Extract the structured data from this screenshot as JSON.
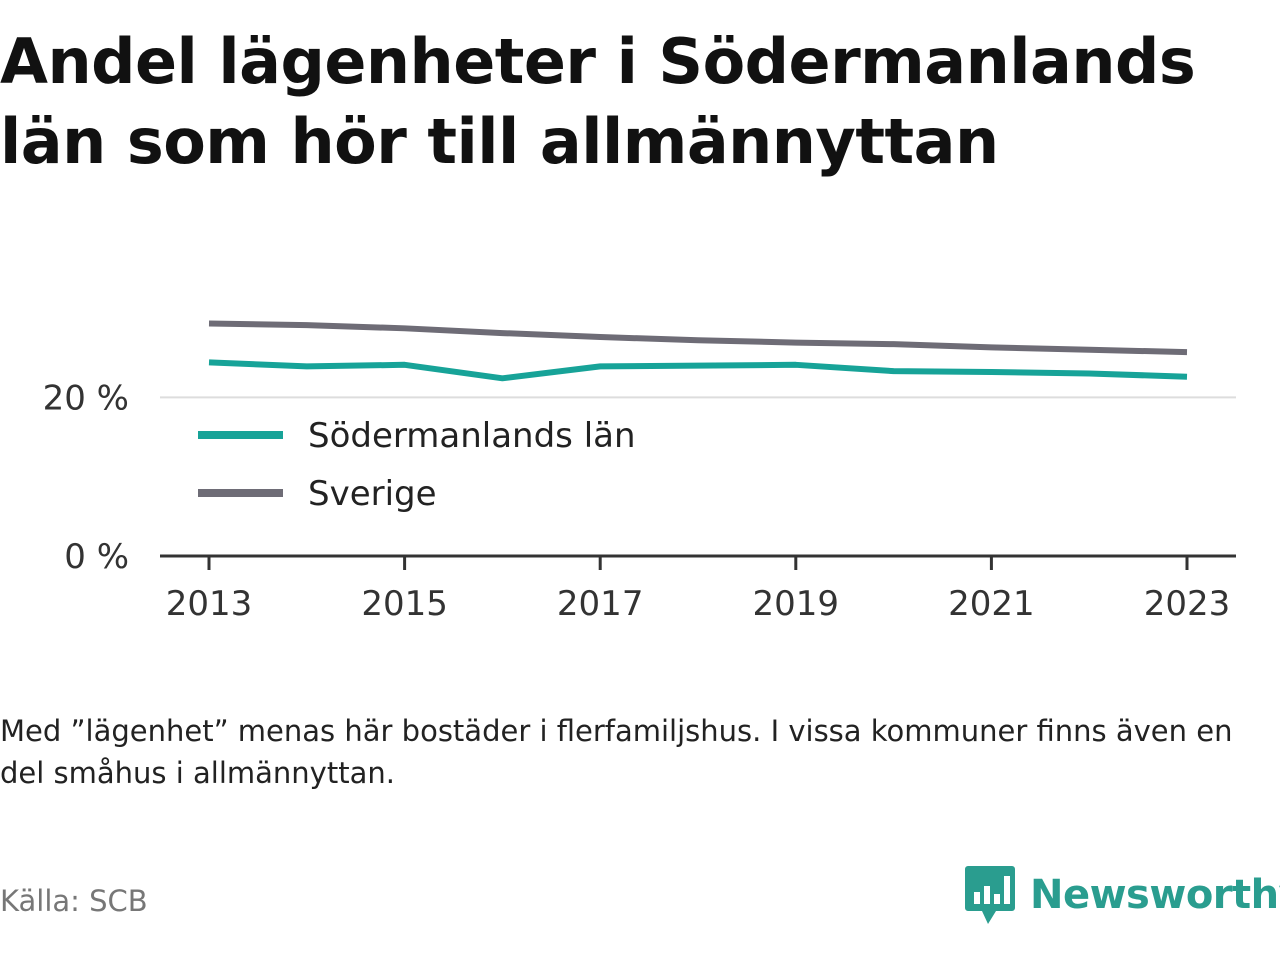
{
  "title": "Andel lägenheter i Södermanlands län som hör till allmännyttan",
  "note": "Med ”lägenhet” menas här bostäder i flerfamiljshus. I vissa kommuner finns även en del småhus i allmännyttan.",
  "source": "Källa: SCB",
  "brand": {
    "name": "Newsworthy",
    "logo_icon": "newsworthy-chart-bubble-icon",
    "color": "#2a9d8f"
  },
  "chart_data": {
    "type": "line",
    "x": [
      2013,
      2014,
      2015,
      2016,
      2017,
      2018,
      2019,
      2020,
      2021,
      2022,
      2023
    ],
    "x_ticks": [
      2013,
      2015,
      2017,
      2019,
      2021,
      2023
    ],
    "y_ticks": [
      0,
      20
    ],
    "y_tick_labels": [
      "0 %",
      "20 %"
    ],
    "ylim": [
      0,
      30
    ],
    "y_unit": "%",
    "grid": true,
    "legend_placement": "inside-left",
    "series": [
      {
        "name": "Södermanlands län",
        "color": "#17a398",
        "values": [
          24.4,
          23.9,
          24.1,
          22.4,
          23.9,
          24.0,
          24.1,
          23.3,
          23.2,
          23.0,
          22.6
        ]
      },
      {
        "name": "Sverige",
        "color": "#6e6c76",
        "values": [
          29.3,
          29.1,
          28.7,
          28.1,
          27.6,
          27.2,
          26.9,
          26.7,
          26.3,
          26.0,
          25.7
        ]
      }
    ]
  }
}
